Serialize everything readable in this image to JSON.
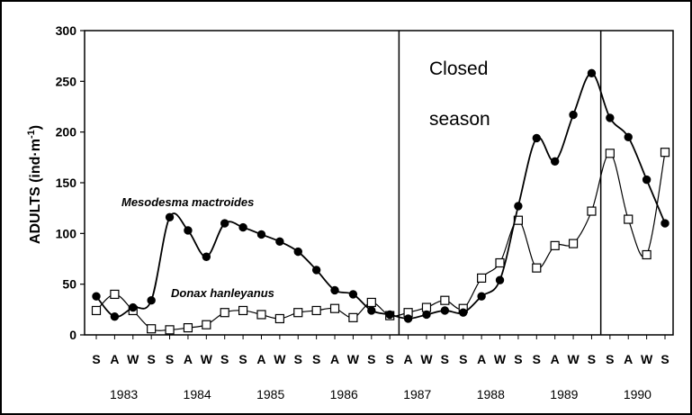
{
  "chart_data": {
    "type": "line",
    "title": "",
    "ylabel": "ADULTS (ind·m",
    "ylabel_sup": "-1",
    "ylabel_end": ")",
    "xlabel": "",
    "ylim": [
      0,
      300
    ],
    "yticks": [
      "0",
      "50",
      "100",
      "150",
      "200",
      "250",
      "300"
    ],
    "x": [
      "S",
      "A",
      "W",
      "S",
      "S",
      "A",
      "W",
      "S",
      "S",
      "A",
      "W",
      "S",
      "S",
      "A",
      "W",
      "S",
      "S",
      "A",
      "W",
      "S",
      "S",
      "A",
      "W",
      "S",
      "S",
      "A",
      "W",
      "S",
      "S",
      "A",
      "W",
      "S"
    ],
    "years": [
      "1983",
      "1984",
      "1985",
      "1986",
      "1987",
      "1988",
      "1989",
      "1990"
    ],
    "annotation": {
      "line1": "Closed",
      "line2": "season"
    },
    "series": [
      {
        "name": "Mesodesma mactroides",
        "marker": "filled-circle",
        "color": "#000000",
        "values": [
          38,
          18,
          27,
          34,
          116,
          103,
          77,
          110,
          106,
          99,
          92,
          82,
          64,
          44,
          40,
          24,
          20,
          16,
          20,
          24,
          22,
          38,
          54,
          127,
          194,
          171,
          217,
          258,
          214,
          195,
          153,
          110
        ]
      },
      {
        "name": "Donax hanleyanus",
        "marker": "open-square",
        "color": "#000000",
        "values": [
          24,
          40,
          24,
          6,
          5,
          7,
          10,
          22,
          24,
          20,
          16,
          22,
          24,
          26,
          17,
          32,
          19,
          22,
          27,
          34,
          26,
          56,
          71,
          113,
          66,
          88,
          90,
          122,
          179,
          114,
          79,
          180
        ]
      }
    ],
    "vlines_after_index": [
      16.5,
      27.5
    ]
  }
}
